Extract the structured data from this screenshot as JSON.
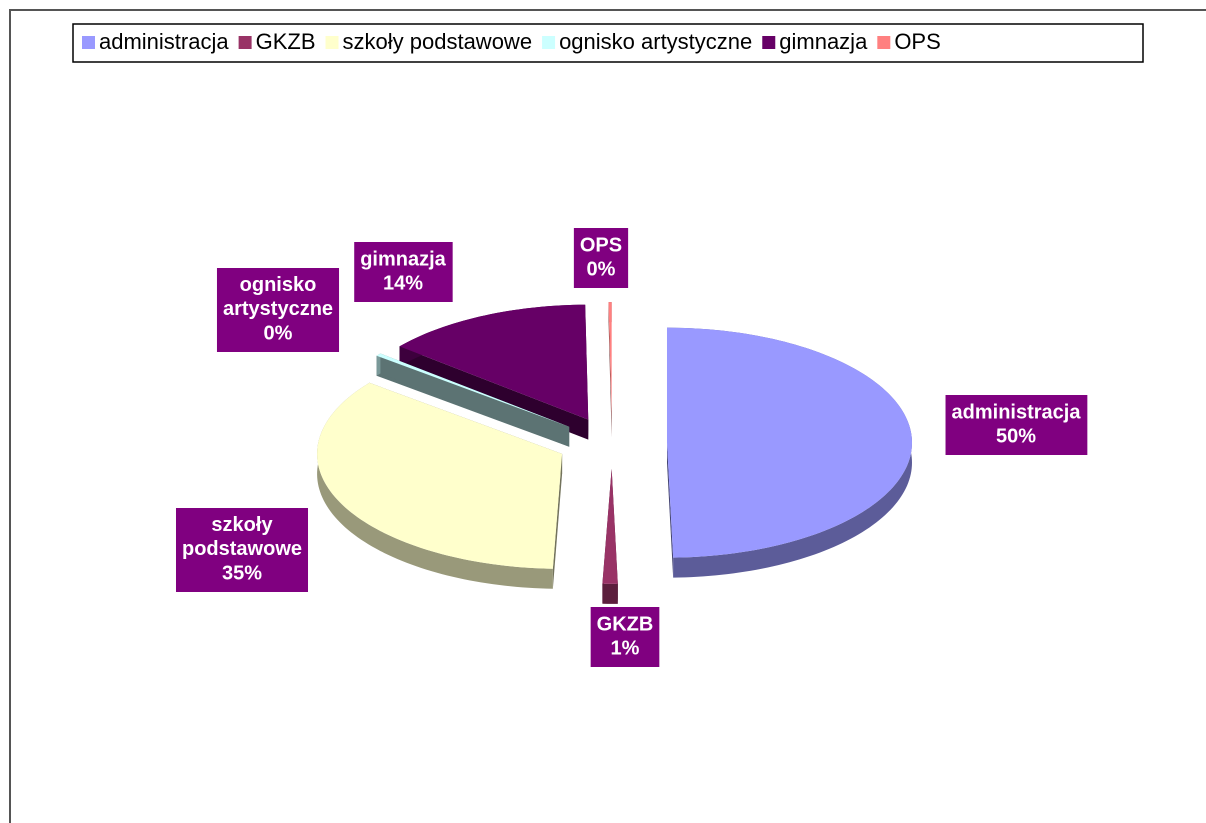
{
  "chart_data": {
    "type": "pie",
    "legend": "top",
    "categories": [
      "administracja",
      "GKZB",
      "szkoły podstawowe",
      "ognisko artystyczne",
      "gimnazja",
      "OPS"
    ],
    "values": [
      49.6,
      1.0,
      35.0,
      0.4,
      13.8,
      0.2
    ],
    "value_labels": [
      "50%",
      "1%",
      "35%",
      "0%",
      "14%",
      "0%"
    ],
    "colors": [
      "#9999ff",
      "#993366",
      "#ffffcc",
      "#ccffff",
      "#660066",
      "#ff8080"
    ]
  }
}
